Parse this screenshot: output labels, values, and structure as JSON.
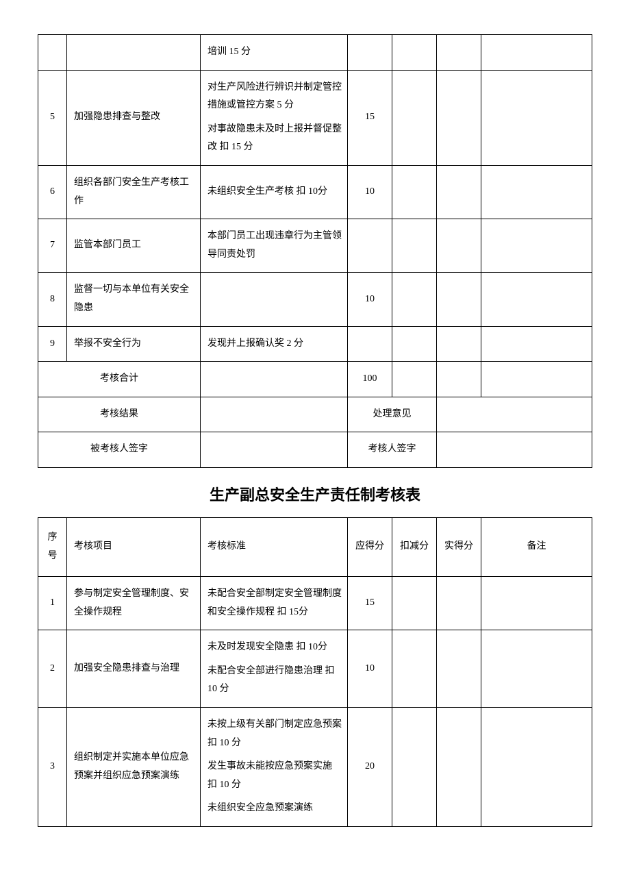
{
  "table1": {
    "rows": [
      {
        "seq": "",
        "item": "",
        "standard": [
          "培训  15 分"
        ],
        "score": "",
        "deduct": "",
        "actual": "",
        "remark": ""
      },
      {
        "seq": "5",
        "item": "加强隐患排查与整改",
        "standard": [
          "对生产风险进行辨识并制定管控措施或管控方案  5 分",
          "对事故隐患未及时上报并督促整改  扣 15 分"
        ],
        "score": "15",
        "deduct": "",
        "actual": "",
        "remark": ""
      },
      {
        "seq": "6",
        "item": "组织各部门安全生产考核工作",
        "standard": [
          "未组织安全生产考核  扣 10分"
        ],
        "score": "10",
        "deduct": "",
        "actual": "",
        "remark": ""
      },
      {
        "seq": "7",
        "item": "监管本部门员工",
        "standard": [
          "本部门员工出现违章行为主管领导同责处罚"
        ],
        "score": "",
        "deduct": "",
        "actual": "",
        "remark": ""
      },
      {
        "seq": "8",
        "item": "监督一切与本单位有关安全隐患",
        "standard": [
          ""
        ],
        "score": "10",
        "deduct": "",
        "actual": "",
        "remark": ""
      },
      {
        "seq": "9",
        "item": "举报不安全行为",
        "standard": [
          "发现并上报确认奖 2 分"
        ],
        "score": "",
        "deduct": "",
        "actual": "",
        "remark": ""
      }
    ],
    "totalLabel": "考核合计",
    "totalScore": "100",
    "resultLabel": "考核结果",
    "opinionLabel": "处理意见",
    "examineeSignLabel": "被考核人签字",
    "examinerSignLabel": "考核人签字"
  },
  "table2": {
    "title": "生产副总安全生产责任制考核表",
    "headers": {
      "seq": "序号",
      "item": "考核项目",
      "standard": "考核标准",
      "score": "应得分",
      "deduct": "扣减分",
      "actual": "实得分",
      "remark": "备注"
    },
    "rows": [
      {
        "seq": "1",
        "item": "参与制定安全管理制度、安全操作规程",
        "standard": [
          "未配合安全部制定安全管理制度和安全操作规程  扣 15分"
        ],
        "score": "15",
        "deduct": "",
        "actual": "",
        "remark": ""
      },
      {
        "seq": "2",
        "item": "加强安全隐患排查与治理",
        "standard": [
          "未及时发现安全隐患  扣 10分",
          "未配合安全部进行隐患治理  扣 10 分"
        ],
        "score": "10",
        "deduct": "",
        "actual": "",
        "remark": ""
      },
      {
        "seq": "3",
        "item": "组织制定并实施本单位应急预案并组织应急预案演练",
        "standard": [
          "未按上级有关部门制定应急预案  扣 10 分",
          "发生事故未能按应急预案实施  扣 10 分",
          "未组织安全应急预案演练"
        ],
        "score": "20",
        "deduct": "",
        "actual": "",
        "remark": ""
      }
    ]
  }
}
